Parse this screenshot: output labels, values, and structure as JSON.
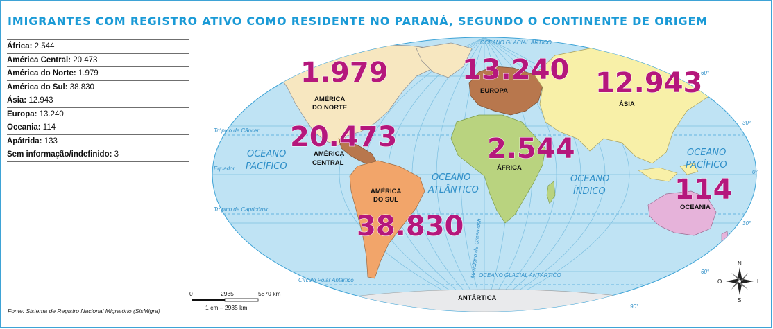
{
  "title": "IMIGRANTES COM REGISTRO ATIVO COMO RESIDENTE NO PARANÁ, SEGUNDO O CONTINENTE DE ORIGEM",
  "legend": [
    {
      "label": "África",
      "value": "2.544"
    },
    {
      "label": "América Central",
      "value": "20.473"
    },
    {
      "label": "América do Norte",
      "value": "1.979"
    },
    {
      "label": "América do Sul",
      "value": "38.830"
    },
    {
      "label": "Ásia",
      "value": "12.943"
    },
    {
      "label": "Europa",
      "value": "13.240"
    },
    {
      "label": "Oceania",
      "value": "114"
    },
    {
      "label": "Apátrida",
      "value": "133"
    },
    {
      "label": "Sem informação/indefinido",
      "value": "3"
    }
  ],
  "source": "Fonte: Sistema de Registro Nacional Migratório (SisMigra)",
  "map": {
    "oceans": {
      "pacific_west_1": "OCEANO",
      "pacific_west_2": "PACÍFICO",
      "atlantic_1": "OCEANO",
      "atlantic_2": "ATLÂNTICO",
      "indian_1": "OCEANO",
      "indian_2": "ÍNDICO",
      "pacific_east_1": "OCEANO",
      "pacific_east_2": "PACÍFICO",
      "arctic": "OCEANO GLACIAL ÁRTICO",
      "antarctic": "OCEANO GLACIAL ANTÁRTICO"
    },
    "lines": {
      "cancer": "Trópico de Câncer",
      "equator": "Equador",
      "capricorn": "Trópico de Capricórnio",
      "polar_antarctic": "Círculo Polar Antártico",
      "greenwich": "Meridiano de Greenwich"
    },
    "lat_labels": [
      "60°",
      "30°",
      "0°",
      "30°",
      "60°",
      "90°"
    ],
    "continents": {
      "north_america_1": "AMÉRICA",
      "north_america_2": "DO NORTE",
      "central_america_1": "AMÉRICA",
      "central_america_2": "CENTRAL",
      "south_america_1": "AMÉRICA",
      "south_america_2": "DO SUL",
      "europe": "EUROPA",
      "africa": "ÁFRICA",
      "asia": "ÁSIA",
      "oceania": "OCEANIA",
      "antarctica": "ANTÁRTICA"
    },
    "values": {
      "north_america": "1.979",
      "central_america": "20.473",
      "south_america": "38.830",
      "europe": "13.240",
      "africa": "2.544",
      "asia": "12.943",
      "oceania": "114"
    },
    "colors": {
      "ocean": "#bfe3f4",
      "north_america": "#f7e7c0",
      "central_america": "#b8774d",
      "south_america": "#f2a56a",
      "europe": "#b8774d",
      "africa": "#b9d37f",
      "asia": "#f8f0a8",
      "oceania": "#e6b3da",
      "antarctica": "#e9eaec",
      "highlight_text": "#b5177c",
      "title": "#1a9ad6"
    },
    "scale": {
      "t0": "0",
      "t1": "2935",
      "t2": "5870 km",
      "caption": "1 cm – 2935 km"
    },
    "compass": {
      "n": "N",
      "s": "S",
      "l": "L",
      "o": "O"
    }
  }
}
